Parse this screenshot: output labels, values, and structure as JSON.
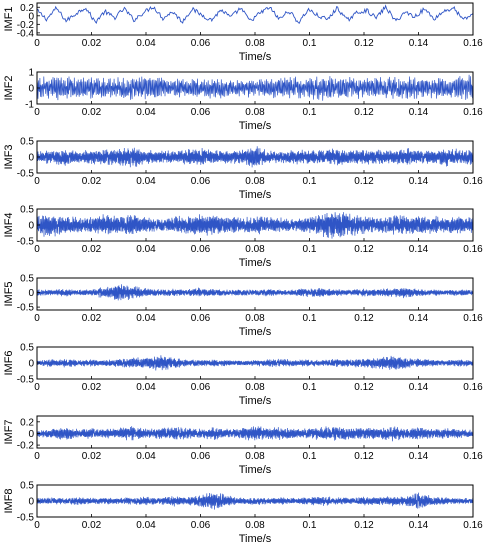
{
  "colors": {
    "signal": "#2f55c6",
    "axis": "#000000",
    "background": "#ffffff"
  },
  "chart_data": [
    {
      "type": "line",
      "ylabel": "IMF1",
      "xlabel": "Time/s",
      "xlim": [
        0,
        0.16
      ],
      "ylim": [
        -0.45,
        0.3
      ],
      "xticks": [
        "0",
        "0.02",
        "0.04",
        "0.06",
        "0.08",
        "0.1",
        "0.12",
        "0.14",
        "0.16"
      ],
      "yticks": [
        {
          "v": 0.2,
          "label": "0.2"
        },
        {
          "v": 0,
          "label": "0"
        },
        {
          "v": -0.2,
          "label": "-0.2"
        },
        {
          "v": -0.4,
          "label": "-0.4"
        }
      ],
      "x_start": 0,
      "x_end": 0.16,
      "samples": 420,
      "y_values": [
        0.12,
        -0.08,
        0.18,
        -0.12,
        0.05,
        0.2,
        -0.15,
        0.1,
        -0.05,
        0.17,
        -0.1,
        0.08,
        0.22,
        -0.06,
        0.1,
        -0.14,
        0.16,
        0.02,
        -0.1,
        0.14,
        -0.04,
        0.18,
        -0.12,
        0.06,
        0.2,
        -0.08,
        0.12,
        -0.16,
        0.15,
        0.0,
        -0.09,
        0.19,
        -0.11,
        0.07,
        0.13,
        -0.05,
        0.21,
        -0.13,
        0.09,
        -0.02,
        0.16,
        -0.07,
        0.11,
        0.18,
        -0.1,
        0.04
      ]
    },
    {
      "type": "line",
      "ylabel": "IMF2",
      "xlabel": "Time/s",
      "xlim": [
        0,
        0.16
      ],
      "ylim": [
        -1,
        1
      ],
      "xticks": [
        "0",
        "0.02",
        "0.04",
        "0.06",
        "0.08",
        "0.1",
        "0.12",
        "0.14",
        "0.16"
      ],
      "yticks": [
        {
          "v": 1,
          "label": "1"
        },
        {
          "v": 0,
          "label": "0"
        },
        {
          "v": -1,
          "label": "-1"
        }
      ],
      "x_start": 0,
      "x_end": 0.16,
      "samples": 900,
      "peak_amplitude": [
        0.7,
        0.75,
        0.8,
        0.72,
        0.78,
        0.65,
        0.7,
        0.8,
        0.74,
        0.68,
        0.6,
        0.66,
        0.72,
        0.7,
        0.62,
        0.58,
        0.64,
        0.7,
        0.66,
        0.72,
        0.76,
        0.8,
        0.74,
        0.7,
        0.68,
        0.72,
        0.78,
        0.74,
        0.7,
        0.66,
        0.72,
        0.8,
        0.9
      ]
    },
    {
      "type": "line",
      "ylabel": "IMF3",
      "xlabel": "Time/s",
      "xlim": [
        0,
        0.16
      ],
      "ylim": [
        -0.5,
        0.5
      ],
      "xticks": [
        "0",
        "0.02",
        "0.04",
        "0.06",
        "0.08",
        "0.1",
        "0.12",
        "0.14",
        "0.16"
      ],
      "yticks": [
        {
          "v": 0.5,
          "label": "0.5"
        },
        {
          "v": 0,
          "label": "0"
        },
        {
          "v": -0.5,
          "label": "-0.5"
        }
      ],
      "x_start": 0,
      "x_end": 0.16,
      "samples": 1300,
      "peak_amplitude": [
        0.18,
        0.22,
        0.3,
        0.2,
        0.26,
        0.24,
        0.28,
        0.35,
        0.22,
        0.24,
        0.2,
        0.25,
        0.3,
        0.22,
        0.2,
        0.24,
        0.36,
        0.22,
        0.2,
        0.26,
        0.22,
        0.24,
        0.3,
        0.22,
        0.26,
        0.24,
        0.22,
        0.3,
        0.24,
        0.22,
        0.3,
        0.26,
        0.24
      ]
    },
    {
      "type": "line",
      "ylabel": "IMF4",
      "xlabel": "Time/s",
      "xlim": [
        0,
        0.16
      ],
      "ylim": [
        -0.5,
        0.5
      ],
      "xticks": [
        "0",
        "0.02",
        "0.04",
        "0.06",
        "0.08",
        "0.1",
        "0.12",
        "0.14",
        "0.16"
      ],
      "yticks": [
        {
          "v": 0.5,
          "label": "0.5"
        },
        {
          "v": 0,
          "label": "0"
        },
        {
          "v": -0.5,
          "label": "-0.5"
        }
      ],
      "x_start": 0,
      "x_end": 0.16,
      "samples": 1300,
      "peak_amplitude": [
        0.35,
        0.4,
        0.3,
        0.25,
        0.28,
        0.35,
        0.3,
        0.38,
        0.25,
        0.22,
        0.28,
        0.3,
        0.35,
        0.32,
        0.28,
        0.24,
        0.3,
        0.28,
        0.25,
        0.22,
        0.3,
        0.4,
        0.48,
        0.38,
        0.3,
        0.26,
        0.3,
        0.34,
        0.28,
        0.3,
        0.26,
        0.3,
        0.28
      ]
    },
    {
      "type": "line",
      "ylabel": "IMF5",
      "xlabel": "Time/s",
      "xlim": [
        0,
        0.16
      ],
      "ylim": [
        -0.6,
        0.5
      ],
      "xticks": [
        "0",
        "0.02",
        "0.04",
        "0.06",
        "0.08",
        "0.1",
        "0.12",
        "0.14",
        "0.16"
      ],
      "yticks": [
        {
          "v": 0.5,
          "label": "0.5"
        },
        {
          "v": 0,
          "label": "0"
        },
        {
          "v": -0.5,
          "label": "-0.5"
        }
      ],
      "x_start": 0,
      "x_end": 0.16,
      "samples": 1300,
      "peak_amplitude": [
        0.12,
        0.1,
        0.14,
        0.1,
        0.12,
        0.22,
        0.32,
        0.25,
        0.15,
        0.12,
        0.14,
        0.12,
        0.18,
        0.14,
        0.1,
        0.12,
        0.1,
        0.14,
        0.1,
        0.12,
        0.2,
        0.14,
        0.12,
        0.1,
        0.14,
        0.12,
        0.16,
        0.2,
        0.14,
        0.12,
        0.1,
        0.12,
        0.1
      ]
    },
    {
      "type": "line",
      "ylabel": "IMF6",
      "xlabel": "Time/s",
      "xlim": [
        0,
        0.16
      ],
      "ylim": [
        -0.5,
        0.5
      ],
      "xticks": [
        "0",
        "0.02",
        "0.04",
        "0.06",
        "0.08",
        "0.1",
        "0.12",
        "0.14",
        "0.16"
      ],
      "yticks": [
        {
          "v": 0.5,
          "label": "0.5"
        },
        {
          "v": 0,
          "label": "0"
        },
        {
          "v": -0.5,
          "label": "-0.5"
        }
      ],
      "x_start": 0,
      "x_end": 0.16,
      "samples": 1300,
      "peak_amplitude": [
        0.1,
        0.12,
        0.14,
        0.1,
        0.12,
        0.1,
        0.14,
        0.18,
        0.2,
        0.28,
        0.18,
        0.12,
        0.1,
        0.12,
        0.1,
        0.08,
        0.1,
        0.12,
        0.14,
        0.1,
        0.12,
        0.1,
        0.14,
        0.12,
        0.16,
        0.2,
        0.25,
        0.2,
        0.14,
        0.12,
        0.1,
        0.12,
        0.1
      ]
    },
    {
      "type": "line",
      "ylabel": "IMF7",
      "xlabel": "Time/s",
      "xlim": [
        0,
        0.16
      ],
      "ylim": [
        -0.25,
        0.3
      ],
      "xticks": [
        "0",
        "0.02",
        "0.04",
        "0.06",
        "0.08",
        "0.1",
        "0.12",
        "0.14",
        "0.16"
      ],
      "yticks": [
        {
          "v": 0.2,
          "label": "0.2"
        },
        {
          "v": 0,
          "label": "0"
        },
        {
          "v": -0.2,
          "label": "-0.2"
        }
      ],
      "x_start": 0,
      "x_end": 0.16,
      "samples": 1300,
      "peak_amplitude": [
        0.06,
        0.08,
        0.12,
        0.08,
        0.1,
        0.08,
        0.1,
        0.14,
        0.08,
        0.1,
        0.12,
        0.1,
        0.08,
        0.12,
        0.08,
        0.1,
        0.14,
        0.1,
        0.12,
        0.08,
        0.1,
        0.12,
        0.14,
        0.1,
        0.12,
        0.1,
        0.14,
        0.1,
        0.12,
        0.08,
        0.1,
        0.08,
        0.06
      ]
    },
    {
      "type": "line",
      "ylabel": "IMF8",
      "xlabel": "Time/s",
      "xlim": [
        0,
        0.16
      ],
      "ylim": [
        -0.5,
        0.5
      ],
      "xticks": [
        "0",
        "0.02",
        "0.04",
        "0.06",
        "0.08",
        "0.1",
        "0.12",
        "0.14",
        "0.16"
      ],
      "yticks": [
        {
          "v": 0.5,
          "label": "0.5"
        },
        {
          "v": 0,
          "label": "0"
        },
        {
          "v": -0.5,
          "label": "-0.5"
        }
      ],
      "x_start": 0,
      "x_end": 0.16,
      "samples": 1300,
      "peak_amplitude": [
        0.1,
        0.12,
        0.1,
        0.14,
        0.1,
        0.12,
        0.1,
        0.12,
        0.14,
        0.1,
        0.18,
        0.12,
        0.2,
        0.32,
        0.18,
        0.12,
        0.14,
        0.1,
        0.12,
        0.1,
        0.14,
        0.16,
        0.12,
        0.1,
        0.14,
        0.12,
        0.18,
        0.14,
        0.3,
        0.16,
        0.12,
        0.1,
        0.1
      ]
    }
  ]
}
